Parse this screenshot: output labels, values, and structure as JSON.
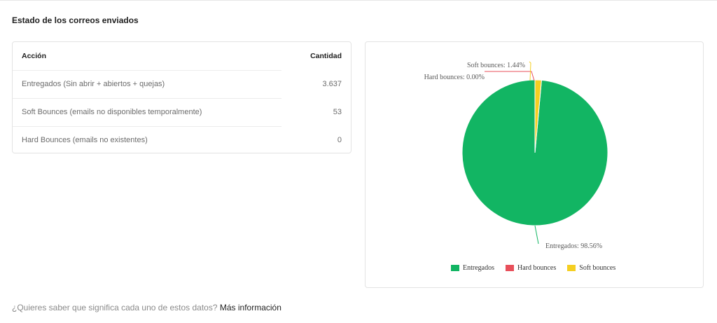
{
  "section": {
    "title": "Estado de los correos enviados"
  },
  "table": {
    "headers": {
      "action": "Acción",
      "count": "Cantidad"
    },
    "rows": [
      {
        "label": "Entregados (Sin abrir + abiertos + quejas)",
        "value": "3.637"
      },
      {
        "label": "Soft Bounces (emails no disponibles temporalmente)",
        "value": "53"
      },
      {
        "label": "Hard Bounces (emails no existentes)",
        "value": "0"
      }
    ]
  },
  "chart_data": {
    "type": "pie",
    "slices": [
      {
        "name": "Entregados",
        "value": 98.56,
        "label": "Entregados: 98.56%",
        "color": "#12b563"
      },
      {
        "name": "Hard bounces",
        "value": 0.0,
        "label": "Hard bounces: 0.00%",
        "color": "#e8505b"
      },
      {
        "name": "Soft bounces",
        "value": 1.44,
        "label": "Soft bounces: 1.44%",
        "color": "#f5cf22"
      }
    ],
    "legend": [
      "Entregados",
      "Hard bounces",
      "Soft bounces"
    ],
    "legend_position": "bottom"
  },
  "footer": {
    "question": "¿Quieres saber que significa cada uno de estos datos?",
    "link": "Más información"
  }
}
